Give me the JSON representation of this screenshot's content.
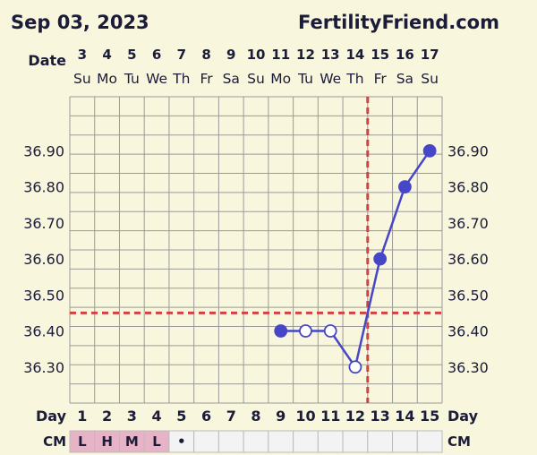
{
  "header": {
    "date": "Sep 03, 2023",
    "site": "FertilityFriend.com"
  },
  "labels": {
    "date": "Date",
    "day": "Day",
    "cm": "CM"
  },
  "colors": {
    "background": "#f8f6dc",
    "grid": "#9a9a9a",
    "line": "#4646c8",
    "marker": "#4646c8",
    "coverline": "#cc4444",
    "cm_highlight": "#e6b4c6",
    "cell_bg": "#f3f3f3"
  },
  "chart_data": {
    "type": "line",
    "dates": [
      "3",
      "4",
      "5",
      "6",
      "7",
      "8",
      "9",
      "10",
      "11",
      "12",
      "13",
      "14",
      "15",
      "16",
      "17"
    ],
    "weekdays": [
      "Su",
      "Mo",
      "Tu",
      "We",
      "Th",
      "Fr",
      "Sa",
      "Su",
      "Mo",
      "Tu",
      "We",
      "Th",
      "Fr",
      "Sa",
      "Su"
    ],
    "cycle_days": [
      "1",
      "2",
      "3",
      "4",
      "5",
      "6",
      "7",
      "8",
      "9",
      "10",
      "11",
      "12",
      "13",
      "14",
      "15"
    ],
    "cm": [
      "L",
      "H",
      "M",
      "L",
      "•",
      "",
      "",
      "",
      "",
      "",
      "",
      "",
      "",
      "",
      ""
    ],
    "y_ticks": [
      "36.30",
      "36.40",
      "36.50",
      "36.60",
      "36.70",
      "36.80",
      "36.90"
    ],
    "ylim": [
      36.2,
      37.05
    ],
    "series": [
      {
        "points": [
          {
            "day": 9,
            "value": 36.4,
            "filled": true
          },
          {
            "day": 10,
            "value": 36.4,
            "filled": false
          },
          {
            "day": 11,
            "value": 36.4,
            "filled": false
          },
          {
            "day": 12,
            "value": 36.3,
            "filled": false
          },
          {
            "day": 13,
            "value": 36.6,
            "filled": true
          },
          {
            "day": 14,
            "value": 36.8,
            "filled": true
          },
          {
            "day": 15,
            "value": 36.9,
            "filled": true
          }
        ]
      }
    ],
    "coverline": 36.45,
    "ovulation_between_days": [
      12,
      13
    ],
    "grid": true
  }
}
